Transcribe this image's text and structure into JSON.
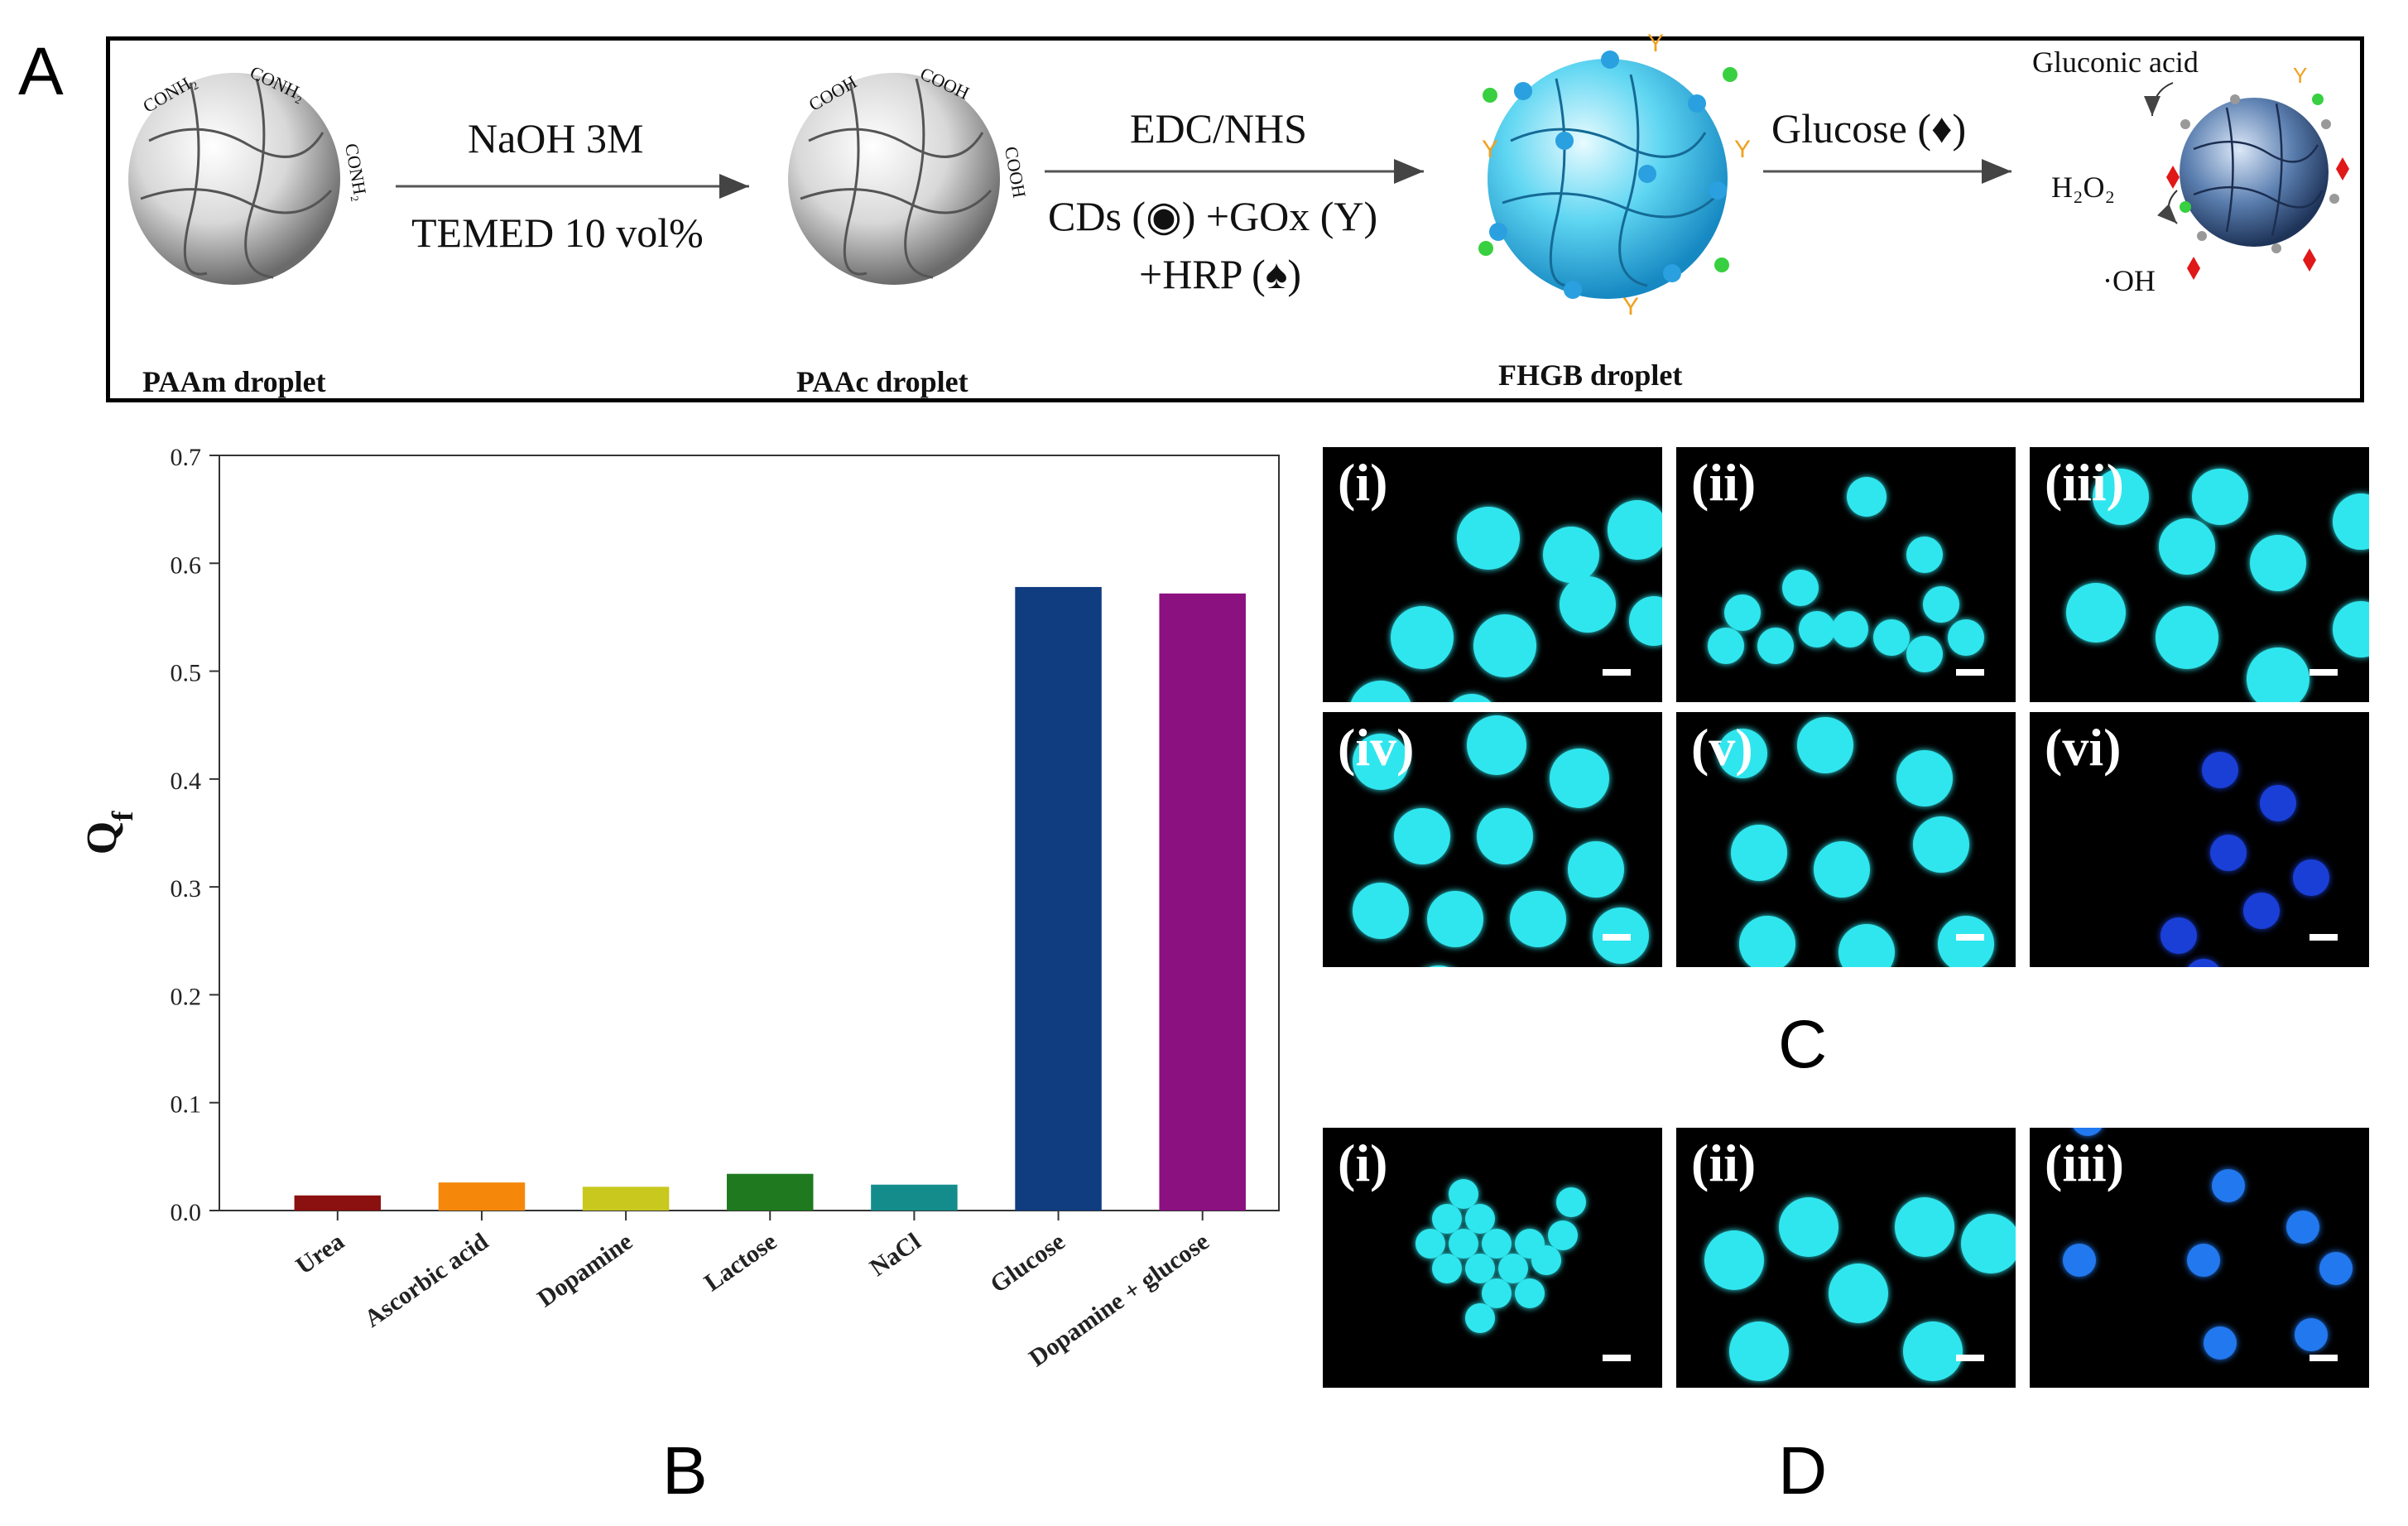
{
  "panels": {
    "A": "A",
    "B": "B",
    "C": "C",
    "D": "D"
  },
  "scheme": {
    "step1_line1": "NaOH 3M",
    "step1_line2": "TEMED 10 vol%",
    "step2_line1": "EDC/NHS",
    "step2_line2": "CDs (◉) +GOx (Y)",
    "step2_line3": "+HRP (♠)",
    "step3": "Glucose (♦)",
    "paam_label": "PAAm droplet",
    "paac_label": "PAAc droplet",
    "fhgb_label": "FHGB droplet",
    "gluconic": "Gluconic acid",
    "h2o2": "H₂O₂",
    "oh": "·OH",
    "amide_group": "CONH₂",
    "acid_group": "COOH"
  },
  "chart_data": {
    "type": "bar",
    "categories": [
      "Urea",
      "Ascorbic acid",
      "Dopamine",
      "Lactose",
      "NaCl",
      "Glucose",
      "Dopamine + glucose"
    ],
    "values": [
      0.014,
      0.026,
      0.022,
      0.034,
      0.024,
      0.578,
      0.572
    ],
    "colors": [
      "#8b1010",
      "#f5870a",
      "#c8c81e",
      "#1f7a1f",
      "#148c8c",
      "#103c80",
      "#8b1080"
    ],
    "ylabel": "Q",
    "ylabel_sub": "f",
    "ylim": [
      0,
      0.7
    ],
    "yticks": [
      "0.0",
      "0.1",
      "0.2",
      "0.3",
      "0.4",
      "0.5",
      "0.6",
      "0.7"
    ],
    "grid": false
  },
  "micrographs_C": [
    "(i)",
    "(ii)",
    "(iii)",
    "(iv)",
    "(v)",
    "(vi)"
  ],
  "micrographs_D": [
    "(i)",
    "(ii)",
    "(iii)"
  ],
  "colors": {
    "bright_droplet": "#2fe6ee",
    "dim_droplet": "#1a3fd6",
    "mid_droplet": "#2278ee"
  }
}
